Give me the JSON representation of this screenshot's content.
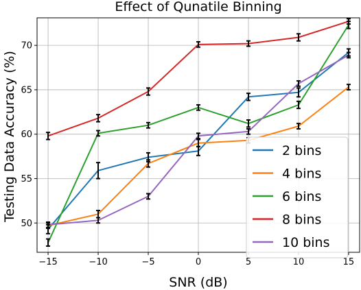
{
  "chart_data": {
    "type": "line",
    "title": "Effect of Qunatile Binning",
    "xlabel": "SNR (dB)",
    "ylabel": "Testing Data Accuracy (%)",
    "x": [
      -15,
      -10,
      -5,
      0,
      5,
      10,
      15
    ],
    "xlim": [
      -16.1,
      16.1
    ],
    "ylim": [
      46.7,
      73.1
    ],
    "xticks": [
      -15,
      -10,
      -5,
      0,
      5,
      10,
      15
    ],
    "yticks": [
      50,
      55,
      60,
      65,
      70
    ],
    "xtick_labels": [
      "−15",
      "−10",
      "−5",
      "0",
      "5",
      "10",
      "15"
    ],
    "ytick_labels": [
      "50",
      "55",
      "60",
      "65",
      "70"
    ],
    "grid": true,
    "legend_position": "lower-right",
    "series": [
      {
        "name": "2 bins",
        "color": "#1f77b4",
        "values": [
          49.3,
          55.9,
          57.4,
          58.1,
          64.2,
          64.7,
          69.2
        ],
        "errors": [
          0.5,
          0.9,
          0.5,
          0.5,
          0.4,
          0.5,
          0.4
        ]
      },
      {
        "name": "4 bins",
        "color": "#ff7f0e",
        "values": [
          49.7,
          51.0,
          56.7,
          59.0,
          59.3,
          60.9,
          65.3
        ],
        "errors": [
          0.3,
          0.4,
          0.4,
          0.4,
          0.3,
          0.3,
          0.3
        ]
      },
      {
        "name": "6 bins",
        "color": "#2ca02c",
        "values": [
          47.8,
          60.1,
          61.0,
          63.0,
          61.2,
          63.3,
          72.3
        ],
        "errors": [
          0.4,
          0.3,
          0.3,
          0.3,
          0.4,
          0.4,
          0.4
        ]
      },
      {
        "name": "8 bins",
        "color": "#d62728",
        "values": [
          59.8,
          61.8,
          64.8,
          70.1,
          70.2,
          70.9,
          72.7
        ],
        "errors": [
          0.4,
          0.4,
          0.4,
          0.3,
          0.3,
          0.4,
          0.3
        ]
      },
      {
        "name": "10 bins",
        "color": "#9467bd",
        "values": [
          49.8,
          50.3,
          53.0,
          59.8,
          60.3,
          65.7,
          68.9
        ],
        "errors": [
          0.3,
          0.3,
          0.3,
          0.3,
          0.3,
          0.3,
          0.3
        ]
      }
    ]
  }
}
